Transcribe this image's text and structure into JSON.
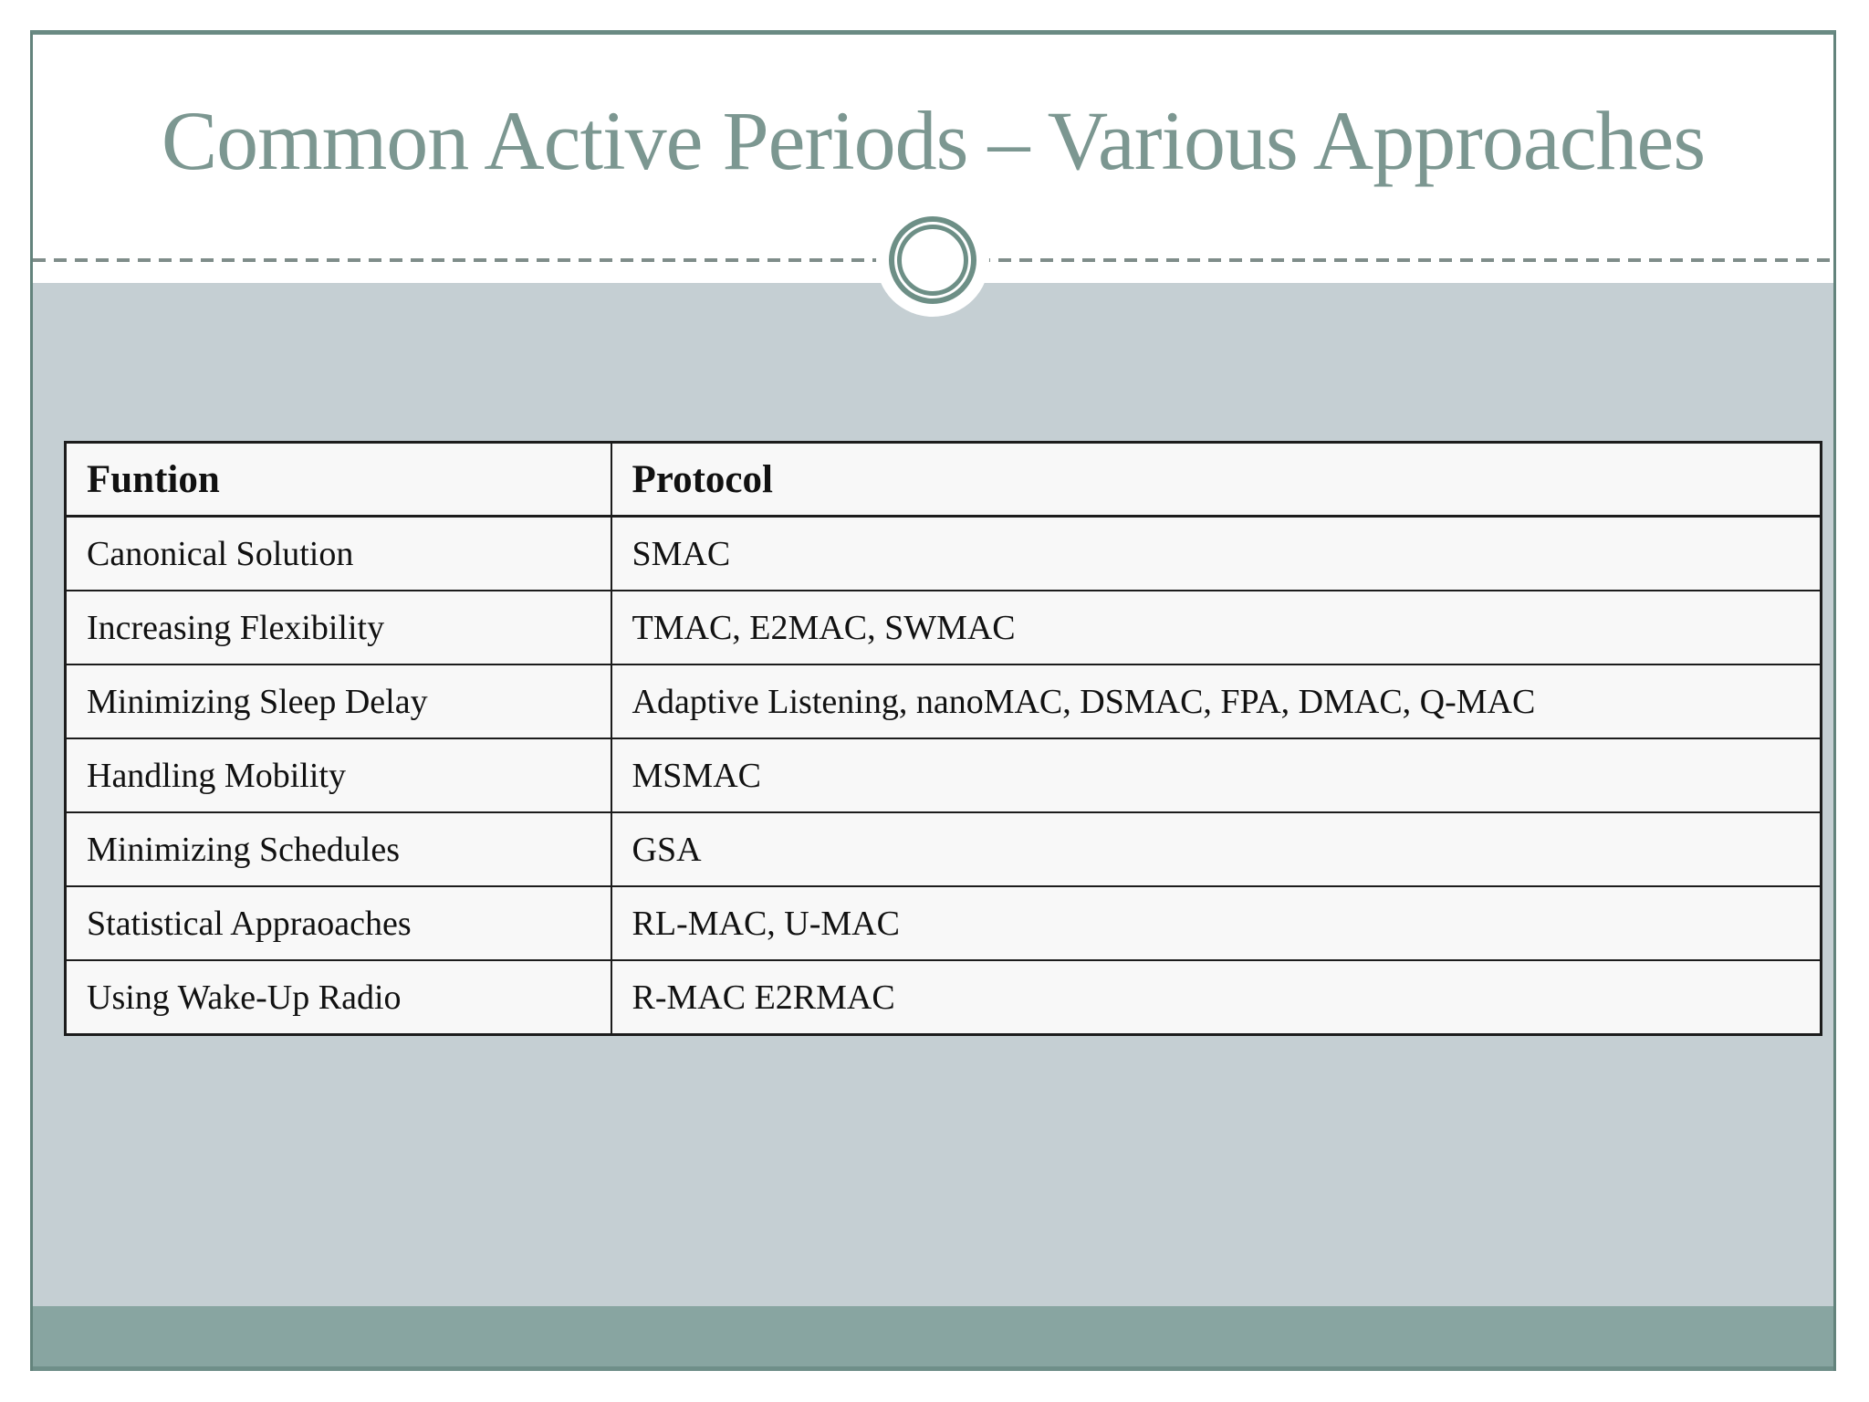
{
  "slide": {
    "title": "Common Active Periods – Various Approaches",
    "ornament": "double-circle",
    "colors": {
      "title_text": "#7c9791",
      "frame_border": "#6a8a83",
      "body_background": "#c5cfd3",
      "bottom_band": "#88a5a1",
      "bottom_band_edge": "#6f8f89",
      "dash_line": "#7f8d8a",
      "table_border": "#1c1c1c",
      "table_background": "#f8f8f8",
      "table_text": "#111111"
    },
    "table": {
      "headers": [
        "Funtion",
        "Protocol"
      ],
      "rows": [
        [
          "Canonical Solution",
          "SMAC"
        ],
        [
          "Increasing Flexibility",
          "TMAC, E2MAC, SWMAC"
        ],
        [
          "Minimizing Sleep Delay",
          "Adaptive Listening, nanoMAC, DSMAC, FPA, DMAC, Q-MAC"
        ],
        [
          "Handling Mobility",
          "MSMAC"
        ],
        [
          "Minimizing Schedules",
          "GSA"
        ],
        [
          "Statistical Appraoaches",
          "RL-MAC, U-MAC"
        ],
        [
          "Using Wake-Up Radio",
          "R-MAC E2RMAC"
        ]
      ]
    }
  }
}
